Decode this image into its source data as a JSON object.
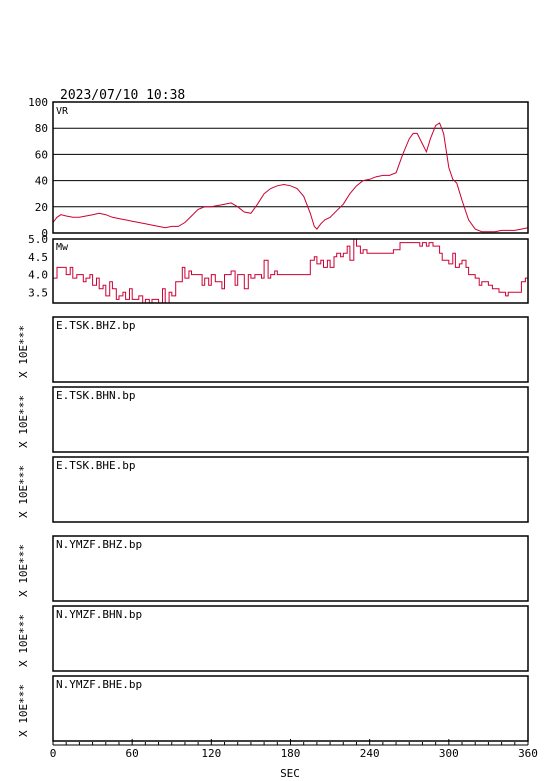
{
  "header": {
    "timestamp": "2023/07/10  10:38"
  },
  "colors": {
    "curve": "#cc0033",
    "frame": "#000000",
    "grid": "#000000"
  },
  "chart_data": [
    {
      "type": "line",
      "label": "VR",
      "xlim": [
        0,
        360
      ],
      "ylim": [
        0,
        100
      ],
      "yticks": [
        "0",
        "20",
        "40",
        "60",
        "80",
        "100"
      ],
      "ytick_values": [
        0,
        20,
        40,
        60,
        80,
        100
      ],
      "grid": true,
      "x": [
        0,
        3,
        6,
        10,
        15,
        20,
        25,
        30,
        35,
        40,
        45,
        50,
        55,
        60,
        65,
        70,
        75,
        80,
        85,
        90,
        95,
        100,
        105,
        110,
        115,
        120,
        125,
        130,
        135,
        140,
        145,
        150,
        155,
        160,
        165,
        170,
        175,
        180,
        185,
        190,
        195,
        198,
        200,
        203,
        206,
        210,
        215,
        220,
        225,
        230,
        235,
        240,
        245,
        250,
        255,
        260,
        265,
        270,
        273,
        276,
        280,
        283,
        286,
        290,
        293,
        296,
        300,
        303,
        306,
        310,
        315,
        320,
        325,
        330,
        335,
        340,
        345,
        350,
        355,
        360
      ],
      "y": [
        8,
        12,
        14,
        13,
        12,
        12,
        13,
        14,
        15,
        14,
        12,
        11,
        10,
        9,
        8,
        7,
        6,
        5,
        4,
        5,
        5,
        8,
        13,
        18,
        20,
        20,
        21,
        22,
        23,
        20,
        16,
        15,
        22,
        30,
        34,
        36,
        37,
        36,
        34,
        28,
        15,
        5,
        3,
        7,
        10,
        12,
        17,
        22,
        30,
        36,
        40,
        41,
        43,
        44,
        44,
        46,
        60,
        72,
        76,
        76,
        68,
        62,
        72,
        82,
        84,
        76,
        50,
        41,
        38,
        25,
        10,
        3,
        1,
        1,
        1,
        2,
        2,
        2,
        3,
        4
      ]
    },
    {
      "type": "line",
      "label": "Mw",
      "xlim": [
        0,
        360
      ],
      "ylim": [
        3.2,
        5.0
      ],
      "yticks": [
        "5.0",
        "4.5",
        "4.0",
        "3.5"
      ],
      "ytick_values": [
        5.0,
        4.5,
        4.0,
        3.5
      ],
      "grid": false,
      "x": [
        0,
        3,
        5,
        8,
        10,
        13,
        15,
        18,
        20,
        23,
        25,
        28,
        30,
        33,
        35,
        38,
        40,
        43,
        45,
        48,
        50,
        53,
        55,
        58,
        60,
        63,
        65,
        68,
        70,
        73,
        75,
        78,
        80,
        83,
        85,
        88,
        90,
        93,
        95,
        98,
        100,
        103,
        105,
        108,
        110,
        113,
        115,
        118,
        120,
        123,
        125,
        128,
        130,
        133,
        135,
        138,
        140,
        143,
        145,
        148,
        150,
        153,
        155,
        158,
        160,
        163,
        165,
        168,
        170,
        173,
        175,
        178,
        180,
        183,
        185,
        188,
        190,
        193,
        195,
        198,
        200,
        203,
        205,
        208,
        210,
        213,
        215,
        218,
        220,
        223,
        225,
        228,
        230,
        233,
        235,
        238,
        240,
        243,
        245,
        248,
        250,
        253,
        255,
        258,
        260,
        263,
        265,
        268,
        270,
        273,
        275,
        278,
        280,
        283,
        285,
        288,
        290,
        293,
        295,
        298,
        300,
        303,
        305,
        308,
        310,
        313,
        315,
        318,
        320,
        323,
        325,
        328,
        330,
        333,
        335,
        338,
        340,
        343,
        345,
        348,
        350,
        353,
        355,
        358,
        360
      ],
      "y": [
        3.9,
        4.2,
        4.2,
        4.2,
        4.0,
        4.2,
        3.9,
        4.0,
        4.0,
        3.8,
        3.9,
        4.0,
        3.7,
        3.9,
        3.6,
        3.7,
        3.4,
        3.8,
        3.6,
        3.3,
        3.4,
        3.5,
        3.3,
        3.6,
        3.3,
        3.3,
        3.4,
        3.2,
        3.3,
        3.2,
        3.3,
        3.3,
        3.2,
        3.6,
        3.2,
        3.5,
        3.4,
        3.8,
        3.8,
        4.2,
        3.9,
        4.1,
        4.0,
        4.0,
        4.0,
        3.7,
        3.9,
        3.7,
        4.0,
        3.8,
        3.8,
        3.6,
        4.0,
        4.0,
        4.1,
        3.7,
        4.0,
        4.0,
        3.6,
        4.0,
        3.9,
        4.0,
        4.0,
        3.9,
        4.4,
        3.9,
        4.0,
        4.1,
        4.0,
        4.0,
        4.0,
        4.0,
        4.0,
        4.0,
        4.0,
        4.0,
        4.0,
        4.0,
        4.4,
        4.5,
        4.3,
        4.4,
        4.2,
        4.4,
        4.2,
        4.5,
        4.6,
        4.5,
        4.6,
        4.8,
        4.4,
        5.0,
        4.8,
        4.6,
        4.7,
        4.6,
        4.6,
        4.6,
        4.6,
        4.6,
        4.6,
        4.6,
        4.6,
        4.7,
        4.7,
        4.9,
        4.9,
        4.9,
        4.9,
        4.9,
        4.9,
        4.8,
        4.9,
        4.8,
        4.9,
        4.8,
        4.8,
        4.6,
        4.4,
        4.4,
        4.3,
        4.6,
        4.2,
        4.3,
        4.4,
        4.2,
        4.0,
        4.0,
        3.9,
        3.7,
        3.8,
        3.8,
        3.7,
        3.6,
        3.6,
        3.5,
        3.5,
        3.4,
        3.5,
        3.5,
        3.5,
        3.5,
        3.8,
        3.9,
        3.9
      ]
    }
  ],
  "traces": [
    {
      "label": "E.TSK.BHZ.bp",
      "scale_label": "X 10E***"
    },
    {
      "label": "E.TSK.BHN.bp",
      "scale_label": "X 10E***"
    },
    {
      "label": "E.TSK.BHE.bp",
      "scale_label": "X 10E***"
    },
    {
      "label": "N.YMZF.BHZ.bp",
      "scale_label": "X 10E***"
    },
    {
      "label": "N.YMZF.BHN.bp",
      "scale_label": "X 10E***"
    },
    {
      "label": "N.YMZF.BHE.bp",
      "scale_label": "X 10E***"
    }
  ],
  "x_axis": {
    "label": "SEC",
    "ticks": [
      "0",
      "60",
      "120",
      "180",
      "240",
      "300",
      "360"
    ],
    "tick_values": [
      0,
      60,
      120,
      180,
      240,
      300,
      360
    ]
  }
}
